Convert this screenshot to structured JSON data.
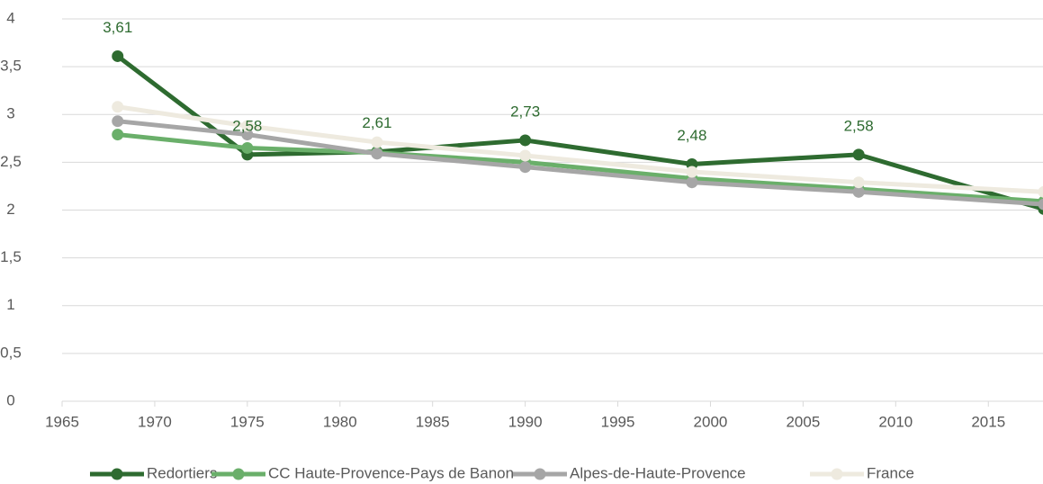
{
  "chart_data": {
    "type": "line",
    "x": [
      1968,
      1975,
      1982,
      1990,
      1999,
      2008,
      2018
    ],
    "xlim": [
      1965,
      2018
    ],
    "xticks": [
      1965,
      1970,
      1975,
      1980,
      1985,
      1990,
      1995,
      2000,
      2005,
      2010,
      2015
    ],
    "ylim": [
      0,
      4
    ],
    "yticks": [
      0,
      {
        "value": 0.5,
        "label": "0,5"
      },
      1,
      {
        "value": 1.5,
        "label": "1,5"
      },
      2,
      {
        "value": 2.5,
        "label": "2,5"
      },
      3,
      {
        "value": 3.5,
        "label": "3,5"
      },
      4
    ],
    "grid": true,
    "legend": "bottom",
    "series": [
      {
        "name": "Redortiers",
        "color": "#2e6b30",
        "values": [
          3.61,
          2.58,
          2.61,
          2.73,
          2.48,
          2.58,
          2.01
        ],
        "value_labels": [
          "3,61",
          "2,58",
          "2,61",
          "2,73",
          "2,48",
          "2,58",
          null
        ]
      },
      {
        "name": "CC Haute-Provence-Pays de Banon",
        "color": "#6aaf6a",
        "values": [
          2.79,
          2.65,
          2.6,
          2.5,
          2.33,
          2.22,
          2.09
        ]
      },
      {
        "name": "Alpes-de-Haute-Provence",
        "color": "#a6a6a6",
        "values": [
          2.93,
          2.79,
          2.59,
          2.45,
          2.29,
          2.19,
          2.06
        ]
      },
      {
        "name": "France",
        "color": "#eeeadf",
        "values": [
          3.08,
          2.88,
          2.71,
          2.57,
          2.4,
          2.29,
          2.19
        ]
      }
    ]
  }
}
